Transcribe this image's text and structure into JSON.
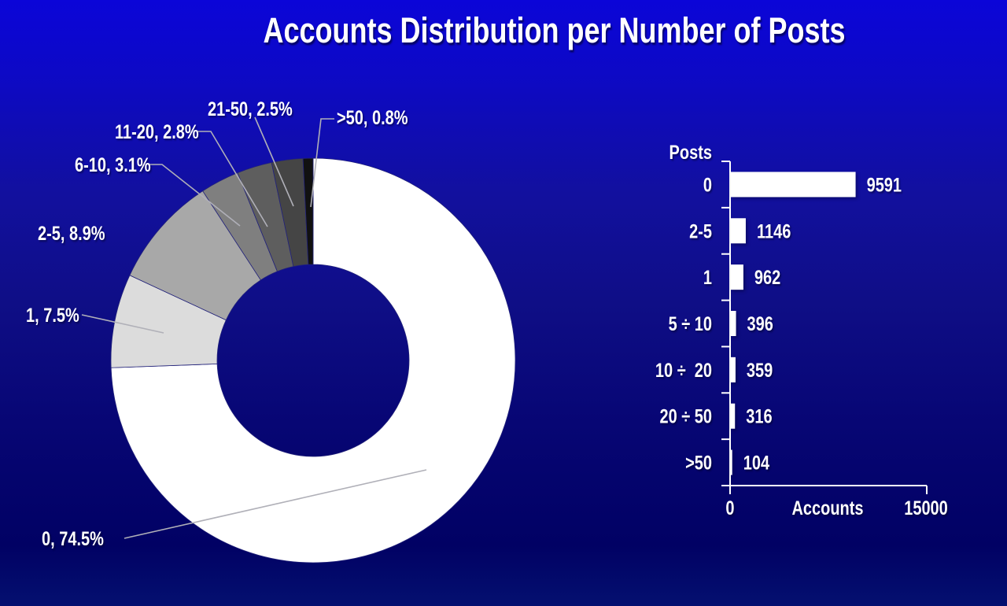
{
  "title": "Accounts Distribution per Number of Posts",
  "background": {
    "top_color": "#0b05d8",
    "bottom_color": "#000060"
  },
  "text_color": "#ffffff",
  "chart_data": [
    {
      "type": "pie",
      "subtype": "donut",
      "title": "Accounts Distribution per Number of Posts",
      "categories": [
        "0",
        "1",
        "2-5",
        "6-10",
        "11-20",
        "21-50",
        ">50"
      ],
      "values_percent": [
        74.5,
        7.5,
        8.9,
        3.1,
        2.8,
        2.5,
        0.8
      ],
      "data_labels": [
        "0, 74.5%",
        "1, 7.5%",
        "2-5, 8.9%",
        "6-10, 3.1%",
        "11-20, 2.8%",
        "21-50, 2.5%",
        ">50, 0.8%"
      ],
      "slice_colors": [
        "#ffffff",
        "#dcdcdc",
        "#a8a8a8",
        "#7f7f7f",
        "#5e5e5e",
        "#454545",
        "#111111"
      ],
      "start_angle": "12 o'clock",
      "direction": "clockwise",
      "legend": "none"
    },
    {
      "type": "bar",
      "orientation": "horizontal",
      "axis_title_y": "Posts",
      "axis_title_x": "Accounts",
      "categories": [
        "0",
        "2-5",
        "1",
        "5 ÷ 10",
        "10 ÷  20",
        "20 ÷ 50",
        ">50"
      ],
      "values": [
        9591,
        1146,
        962,
        396,
        359,
        316,
        104
      ],
      "xlim": [
        0,
        15000
      ],
      "xtick_labels": [
        "0",
        "15000"
      ],
      "bar_color": "#ffffff",
      "grid": false,
      "legend": "none"
    }
  ]
}
